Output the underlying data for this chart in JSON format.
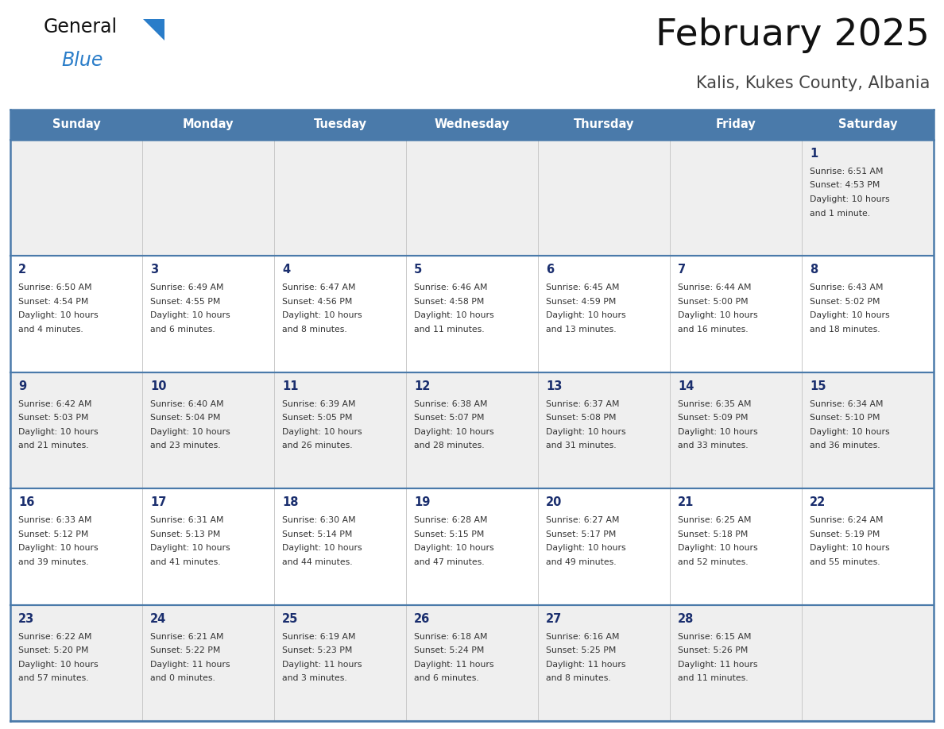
{
  "title": "February 2025",
  "subtitle": "Kalis, Kukes County, Albania",
  "days_of_week": [
    "Sunday",
    "Monday",
    "Tuesday",
    "Wednesday",
    "Thursday",
    "Friday",
    "Saturday"
  ],
  "header_bg": "#4a7aaa",
  "header_text": "#ffffff",
  "row_bg_light": "#efefef",
  "row_bg_white": "#ffffff",
  "cell_text_color": "#333333",
  "day_num_color": "#1a2e6e",
  "border_color": "#4a7aaa",
  "title_color": "#111111",
  "subtitle_color": "#444444",
  "logo_general_color": "#111111",
  "logo_blue_color": "#2a7dc9",
  "logo_triangle_color": "#2a7dc9",
  "calendar": [
    [
      null,
      null,
      null,
      null,
      null,
      null,
      {
        "day": "1",
        "sunrise": "6:51 AM",
        "sunset": "4:53 PM",
        "dl1": "Daylight: 10 hours",
        "dl2": "and 1 minute."
      }
    ],
    [
      {
        "day": "2",
        "sunrise": "6:50 AM",
        "sunset": "4:54 PM",
        "dl1": "Daylight: 10 hours",
        "dl2": "and 4 minutes."
      },
      {
        "day": "3",
        "sunrise": "6:49 AM",
        "sunset": "4:55 PM",
        "dl1": "Daylight: 10 hours",
        "dl2": "and 6 minutes."
      },
      {
        "day": "4",
        "sunrise": "6:47 AM",
        "sunset": "4:56 PM",
        "dl1": "Daylight: 10 hours",
        "dl2": "and 8 minutes."
      },
      {
        "day": "5",
        "sunrise": "6:46 AM",
        "sunset": "4:58 PM",
        "dl1": "Daylight: 10 hours",
        "dl2": "and 11 minutes."
      },
      {
        "day": "6",
        "sunrise": "6:45 AM",
        "sunset": "4:59 PM",
        "dl1": "Daylight: 10 hours",
        "dl2": "and 13 minutes."
      },
      {
        "day": "7",
        "sunrise": "6:44 AM",
        "sunset": "5:00 PM",
        "dl1": "Daylight: 10 hours",
        "dl2": "and 16 minutes."
      },
      {
        "day": "8",
        "sunrise": "6:43 AM",
        "sunset": "5:02 PM",
        "dl1": "Daylight: 10 hours",
        "dl2": "and 18 minutes."
      }
    ],
    [
      {
        "day": "9",
        "sunrise": "6:42 AM",
        "sunset": "5:03 PM",
        "dl1": "Daylight: 10 hours",
        "dl2": "and 21 minutes."
      },
      {
        "day": "10",
        "sunrise": "6:40 AM",
        "sunset": "5:04 PM",
        "dl1": "Daylight: 10 hours",
        "dl2": "and 23 minutes."
      },
      {
        "day": "11",
        "sunrise": "6:39 AM",
        "sunset": "5:05 PM",
        "dl1": "Daylight: 10 hours",
        "dl2": "and 26 minutes."
      },
      {
        "day": "12",
        "sunrise": "6:38 AM",
        "sunset": "5:07 PM",
        "dl1": "Daylight: 10 hours",
        "dl2": "and 28 minutes."
      },
      {
        "day": "13",
        "sunrise": "6:37 AM",
        "sunset": "5:08 PM",
        "dl1": "Daylight: 10 hours",
        "dl2": "and 31 minutes."
      },
      {
        "day": "14",
        "sunrise": "6:35 AM",
        "sunset": "5:09 PM",
        "dl1": "Daylight: 10 hours",
        "dl2": "and 33 minutes."
      },
      {
        "day": "15",
        "sunrise": "6:34 AM",
        "sunset": "5:10 PM",
        "dl1": "Daylight: 10 hours",
        "dl2": "and 36 minutes."
      }
    ],
    [
      {
        "day": "16",
        "sunrise": "6:33 AM",
        "sunset": "5:12 PM",
        "dl1": "Daylight: 10 hours",
        "dl2": "and 39 minutes."
      },
      {
        "day": "17",
        "sunrise": "6:31 AM",
        "sunset": "5:13 PM",
        "dl1": "Daylight: 10 hours",
        "dl2": "and 41 minutes."
      },
      {
        "day": "18",
        "sunrise": "6:30 AM",
        "sunset": "5:14 PM",
        "dl1": "Daylight: 10 hours",
        "dl2": "and 44 minutes."
      },
      {
        "day": "19",
        "sunrise": "6:28 AM",
        "sunset": "5:15 PM",
        "dl1": "Daylight: 10 hours",
        "dl2": "and 47 minutes."
      },
      {
        "day": "20",
        "sunrise": "6:27 AM",
        "sunset": "5:17 PM",
        "dl1": "Daylight: 10 hours",
        "dl2": "and 49 minutes."
      },
      {
        "day": "21",
        "sunrise": "6:25 AM",
        "sunset": "5:18 PM",
        "dl1": "Daylight: 10 hours",
        "dl2": "and 52 minutes."
      },
      {
        "day": "22",
        "sunrise": "6:24 AM",
        "sunset": "5:19 PM",
        "dl1": "Daylight: 10 hours",
        "dl2": "and 55 minutes."
      }
    ],
    [
      {
        "day": "23",
        "sunrise": "6:22 AM",
        "sunset": "5:20 PM",
        "dl1": "Daylight: 10 hours",
        "dl2": "and 57 minutes."
      },
      {
        "day": "24",
        "sunrise": "6:21 AM",
        "sunset": "5:22 PM",
        "dl1": "Daylight: 11 hours",
        "dl2": "and 0 minutes."
      },
      {
        "day": "25",
        "sunrise": "6:19 AM",
        "sunset": "5:23 PM",
        "dl1": "Daylight: 11 hours",
        "dl2": "and 3 minutes."
      },
      {
        "day": "26",
        "sunrise": "6:18 AM",
        "sunset": "5:24 PM",
        "dl1": "Daylight: 11 hours",
        "dl2": "and 6 minutes."
      },
      {
        "day": "27",
        "sunrise": "6:16 AM",
        "sunset": "5:25 PM",
        "dl1": "Daylight: 11 hours",
        "dl2": "and 8 minutes."
      },
      {
        "day": "28",
        "sunrise": "6:15 AM",
        "sunset": "5:26 PM",
        "dl1": "Daylight: 11 hours",
        "dl2": "and 11 minutes."
      },
      null
    ]
  ]
}
